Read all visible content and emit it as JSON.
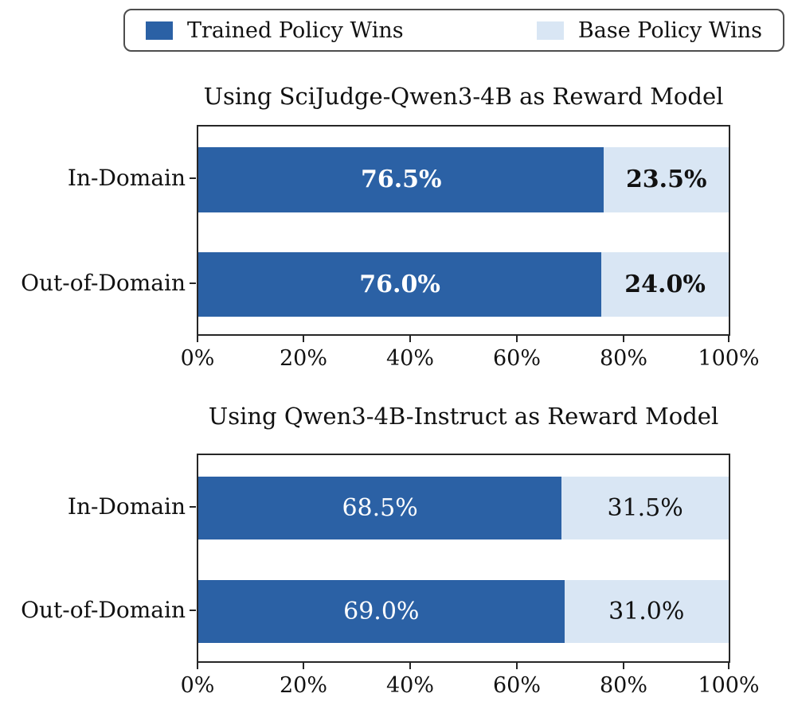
{
  "legend": {
    "entries": [
      {
        "label": "Trained Policy Wins",
        "color": "#2b61a5"
      },
      {
        "label": "Base Policy Wins",
        "color": "#d9e6f4"
      }
    ]
  },
  "chart_data": [
    {
      "type": "bar",
      "orientation": "horizontal",
      "stacked": true,
      "title": "Using SciJudge-Qwen3-4B as Reward Model",
      "categories": [
        "In-Domain",
        "Out-of-Domain"
      ],
      "series": [
        {
          "name": "Trained Policy Wins",
          "color": "#2b61a5",
          "values": [
            76.5,
            76.0
          ]
        },
        {
          "name": "Base Policy Wins",
          "color": "#d9e6f4",
          "values": [
            23.5,
            24.0
          ]
        }
      ],
      "bar_labels": [
        [
          "76.5%",
          "23.5%"
        ],
        [
          "76.0%",
          "24.0%"
        ]
      ],
      "bar_labels_bold": true,
      "x_ticks": [
        "0%",
        "20%",
        "40%",
        "60%",
        "80%",
        "100%"
      ],
      "xlim": [
        0,
        100
      ],
      "grid": false,
      "legend_position": "top-outside-shared"
    },
    {
      "type": "bar",
      "orientation": "horizontal",
      "stacked": true,
      "title": "Using Qwen3-4B-Instruct as Reward Model",
      "categories": [
        "In-Domain",
        "Out-of-Domain"
      ],
      "series": [
        {
          "name": "Trained Policy Wins",
          "color": "#2b61a5",
          "values": [
            68.5,
            69.0
          ]
        },
        {
          "name": "Base Policy Wins",
          "color": "#d9e6f4",
          "values": [
            31.5,
            31.0
          ]
        }
      ],
      "bar_labels": [
        [
          "68.5%",
          "31.5%"
        ],
        [
          "69.0%",
          "31.0%"
        ]
      ],
      "bar_labels_bold": false,
      "x_ticks": [
        "0%",
        "20%",
        "40%",
        "60%",
        "80%",
        "100%"
      ],
      "xlim": [
        0,
        100
      ],
      "grid": false,
      "legend_position": "top-outside-shared"
    }
  ]
}
